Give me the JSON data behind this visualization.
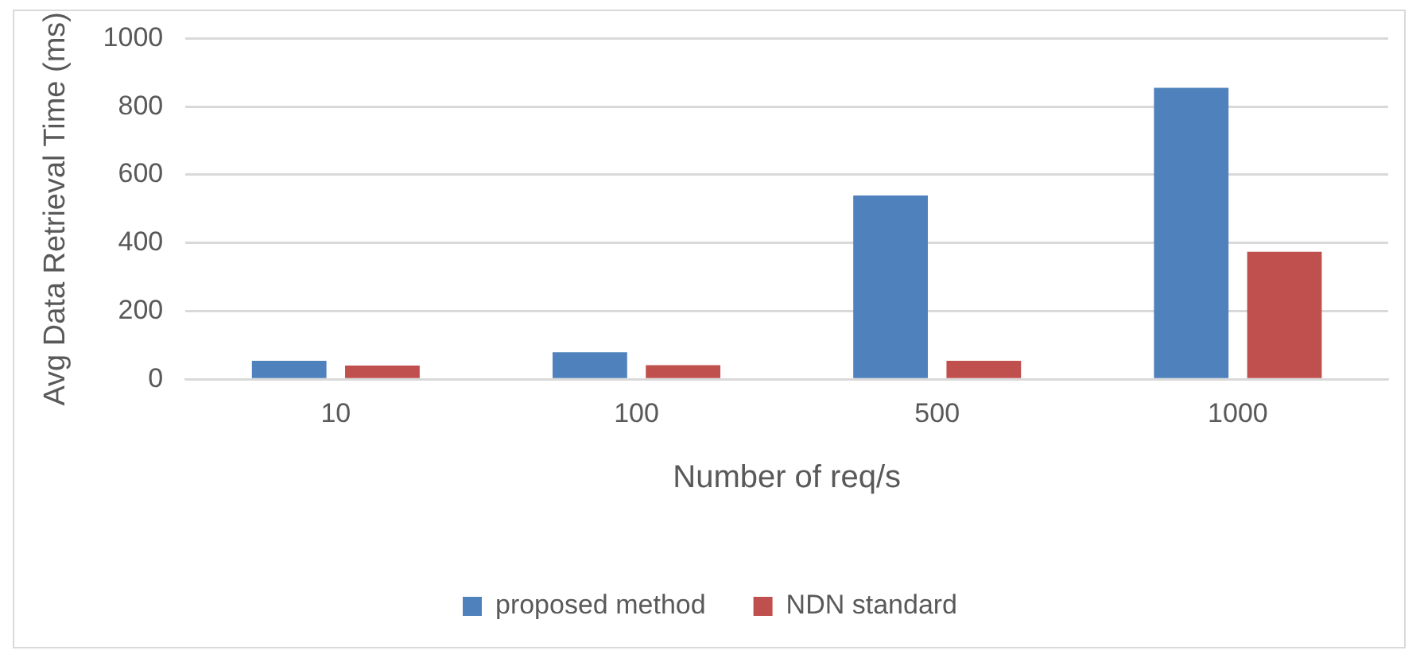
{
  "chart_data": {
    "type": "bar",
    "xlabel": "Number of req/s",
    "ylabel": "Avg Data Retrieval Time (ms)",
    "categories": [
      "10",
      "100",
      "500",
      "1000"
    ],
    "series": [
      {
        "name": "proposed method",
        "color": "#4f81bd",
        "values": [
          54,
          79,
          539,
          855
        ]
      },
      {
        "name": "NDN standard",
        "color": "#c0504d",
        "values": [
          40,
          41,
          54,
          374
        ]
      }
    ],
    "ylim": [
      0,
      1000
    ],
    "yticks": [
      0,
      200,
      400,
      600,
      800,
      1000
    ],
    "grid": "y",
    "legend": "bottom"
  }
}
